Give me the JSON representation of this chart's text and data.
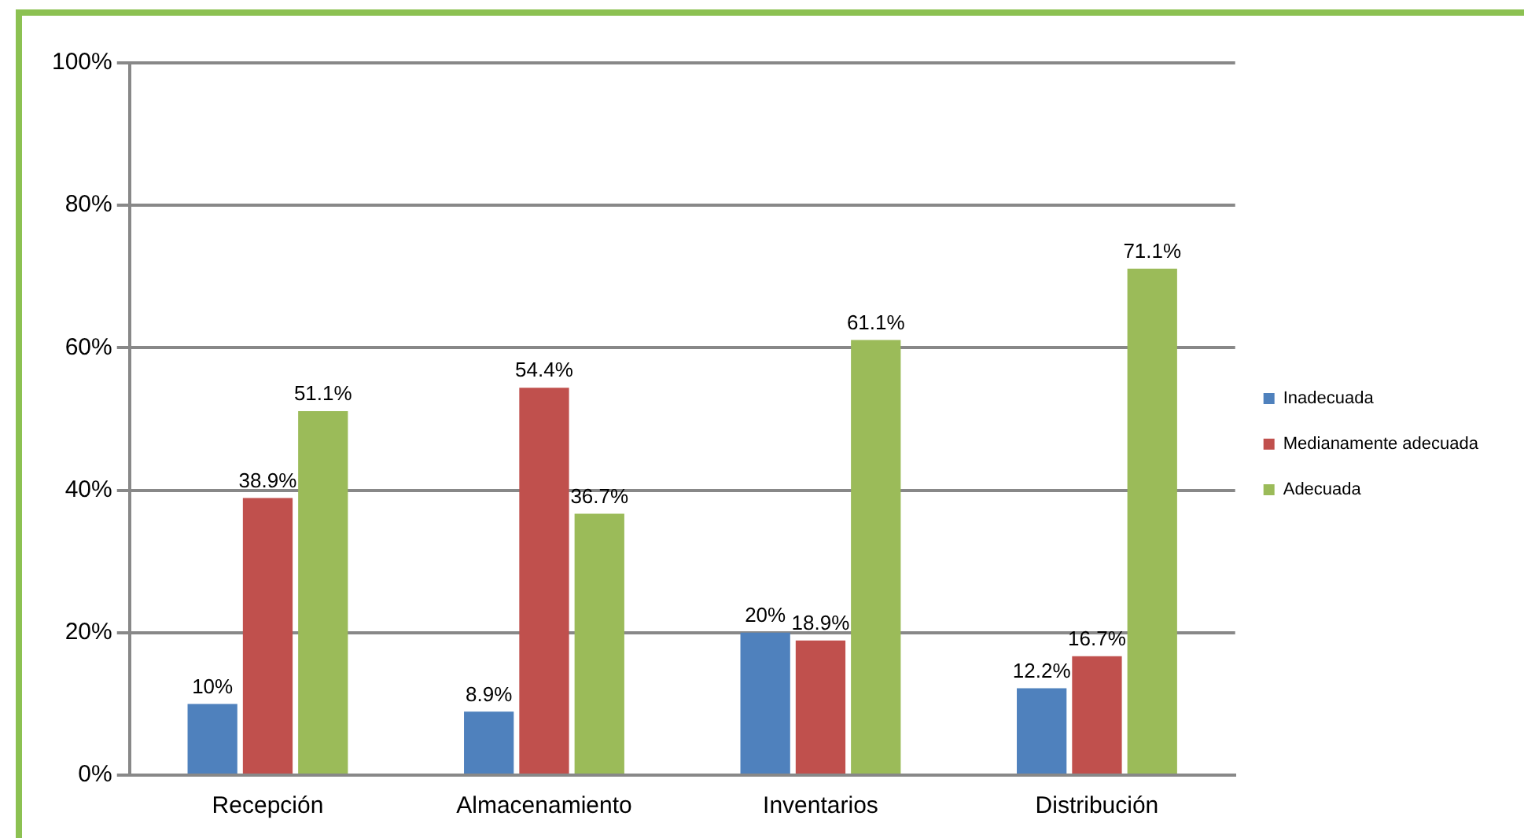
{
  "chart_data": {
    "type": "bar",
    "categories": [
      "Recepción",
      "Almacenamiento",
      "Inventarios",
      "Distribución"
    ],
    "series": [
      {
        "name": "Inadecuada",
        "color": "#4f81bd",
        "values": [
          10,
          8.9,
          20,
          12.2
        ],
        "value_labels": [
          "10%",
          "8.9%",
          "20%",
          "12.2%"
        ]
      },
      {
        "name": "Medianamente adecuada",
        "color": "#c0504d",
        "values": [
          38.9,
          54.4,
          18.9,
          16.7
        ],
        "value_labels": [
          "38.9%",
          "54.4%",
          "18.9%",
          "16.7%"
        ]
      },
      {
        "name": "Adecuada",
        "color": "#9bbb59",
        "values": [
          51.1,
          36.7,
          61.1,
          71.1
        ],
        "value_labels": [
          "51.1%",
          "36.7%",
          "61.1%",
          "71.1%"
        ]
      }
    ],
    "ylim": [
      0,
      100
    ],
    "yticks": [
      {
        "value": 0,
        "label": "0%"
      },
      {
        "value": 20,
        "label": "20%"
      },
      {
        "value": 40,
        "label": "40%"
      },
      {
        "value": 60,
        "label": "60%"
      },
      {
        "value": 80,
        "label": "80%"
      },
      {
        "value": 100,
        "label": "100%"
      }
    ],
    "grid": "y",
    "legend": "right"
  }
}
